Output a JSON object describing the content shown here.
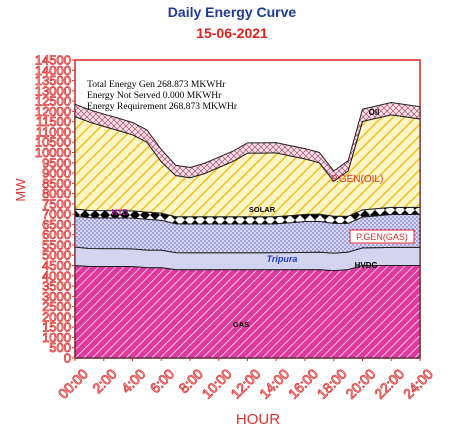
{
  "chart_data": {
    "type": "area",
    "title": "Daily Energy Curve",
    "subtitle": "15-06-2021",
    "xlabel": "HOUR",
    "ylabel": "MW",
    "ylim": [
      0,
      14500
    ],
    "ytick_step": 500,
    "grid": false,
    "x": [
      "00:00",
      "1:00",
      "2:00",
      "3:00",
      "4:00",
      "5:00",
      "6:00",
      "7:00",
      "8:00",
      "9:00",
      "10:00",
      "11:00",
      "12:00",
      "13:00",
      "14:00",
      "15:00",
      "16:00",
      "17:00",
      "18:00",
      "19:00",
      "20:00",
      "21:00",
      "22:00",
      "23:00",
      "24:00"
    ],
    "x_tick_labels": [
      "00:00",
      "2:00",
      "4:00",
      "6:00",
      "8:00",
      "10:00",
      "12:00",
      "14:00",
      "16:00",
      "18:00",
      "20:00",
      "22:00",
      "24:00"
    ],
    "series": [
      {
        "name": "GAS",
        "color": "#e0399d",
        "pattern": "diag-magenta",
        "values": [
          4500,
          4450,
          4450,
          4450,
          4450,
          4400,
          4400,
          4300,
          4300,
          4300,
          4300,
          4300,
          4300,
          4300,
          4300,
          4300,
          4300,
          4300,
          4250,
          4300,
          4500,
          4500,
          4500,
          4500,
          4500
        ]
      },
      {
        "name": "HVDC",
        "color": "#d8d8f0",
        "pattern": "light-fill",
        "values": [
          900,
          880,
          870,
          870,
          860,
          850,
          850,
          830,
          820,
          820,
          820,
          820,
          820,
          820,
          830,
          830,
          840,
          850,
          850,
          850,
          860,
          870,
          880,
          880,
          880
        ]
      },
      {
        "name": "Tripura",
        "color": "#c8c8f2",
        "pattern": "dots",
        "values": [
          1500,
          1500,
          1500,
          1500,
          1500,
          1500,
          1450,
          1400,
          1400,
          1400,
          1400,
          1400,
          1400,
          1400,
          1400,
          1450,
          1500,
          1500,
          1450,
          1400,
          1500,
          1550,
          1600,
          1600,
          1600
        ]
      },
      {
        "name": "",
        "color": "#000000",
        "pattern": "diamond",
        "values": [
          350,
          350,
          350,
          350,
          350,
          350,
          350,
          350,
          350,
          350,
          350,
          350,
          350,
          350,
          350,
          350,
          350,
          350,
          350,
          350,
          350,
          350,
          350,
          350,
          350
        ]
      },
      {
        "name": "P.GEN(OIL)",
        "color": "#f1d44a",
        "pattern": "diag-yellow",
        "values": [
          4500,
          4300,
          4100,
          3900,
          3700,
          3400,
          2500,
          2000,
          1900,
          2100,
          2400,
          2700,
          3100,
          3100,
          3100,
          2900,
          2700,
          2500,
          1700,
          2200,
          4300,
          4400,
          4500,
          4400,
          4300
        ]
      },
      {
        "name": "OIL",
        "color": "#c08080",
        "pattern": "crosshatch",
        "values": [
          600,
          600,
          600,
          600,
          600,
          600,
          600,
          500,
          500,
          500,
          500,
          500,
          500,
          500,
          500,
          500,
          500,
          500,
          500,
          500,
          600,
          600,
          600,
          600,
          600
        ]
      }
    ],
    "annotations": [
      "Total Energy Gen 268.873 MKWHr",
      "Energy Not Served   0.000 MKWHr",
      "Energy Requirement      268.873 MKWHr"
    ],
    "series_labels": [
      "GAS",
      "HVDC",
      "Tripura",
      "P.GEN(GAS)",
      "SOLAR",
      "P.GEN(OIL)",
      "Oil"
    ],
    "extra_label": "HYD"
  }
}
